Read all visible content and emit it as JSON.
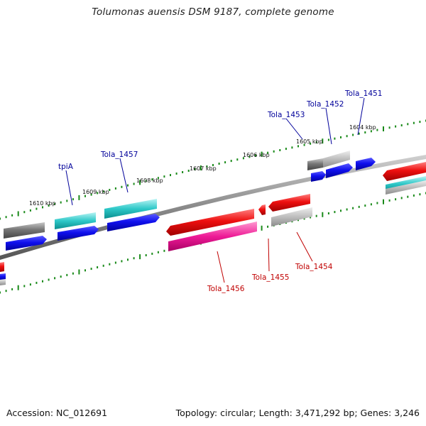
{
  "title": "Tolumonas auensis DSM 9187, complete genome",
  "accession": "Accession: NC_012691",
  "summary": "Topology: circular; Length: 3,471,292 bp; Genes: 3,246",
  "ticks": [
    "1604 kbp",
    "1605 kbp",
    "1606 kbp",
    "1607 kbp",
    "1608 kbp",
    "1609 kbp",
    "1610 kbp"
  ],
  "gene_labels_top": [
    "Tola_1451",
    "Tola_1452",
    "Tola_1453",
    "Tola_1457",
    "tpiA"
  ],
  "gene_labels_bottom": [
    "Tola_1454",
    "Tola_1455",
    "Tola_1456"
  ],
  "colors": {
    "forward_label": "#00009a",
    "reverse_label": "#c00000",
    "tick": "#1a8a1a",
    "backbone": "#888888"
  }
}
